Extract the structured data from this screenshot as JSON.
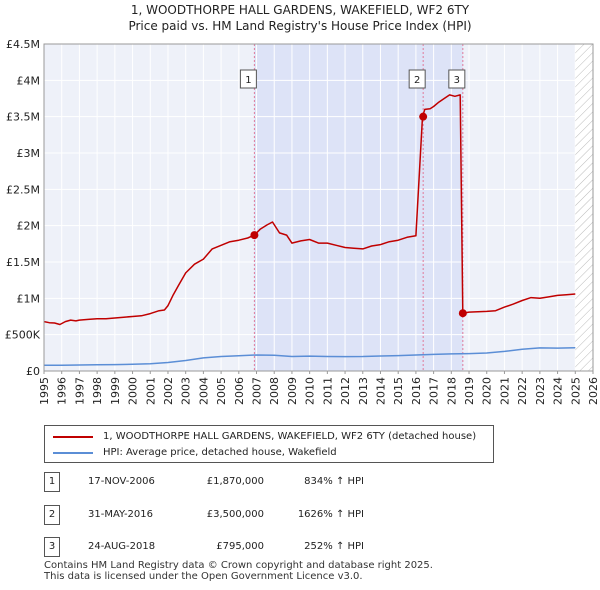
{
  "chart_data": {
    "type": "line",
    "title": "1, WOODTHORPE HALL GARDENS, WAKEFIELD, WF2 6TY",
    "subtitle": "Price paid vs. HM Land Registry's House Price Index (HPI)",
    "xlim": [
      1995,
      2026
    ],
    "ylim": [
      0,
      4500000
    ],
    "x_ticks": [
      1995,
      1996,
      1997,
      1998,
      1999,
      2000,
      2001,
      2002,
      2003,
      2004,
      2005,
      2006,
      2007,
      2008,
      2009,
      2010,
      2011,
      2012,
      2013,
      2014,
      2015,
      2016,
      2017,
      2018,
      2019,
      2020,
      2021,
      2022,
      2023,
      2024,
      2025,
      2026
    ],
    "y_ticks": [
      {
        "value": 0,
        "label": "£0"
      },
      {
        "value": 500000,
        "label": "£500K"
      },
      {
        "value": 1000000,
        "label": "£1M"
      },
      {
        "value": 1500000,
        "label": "£1.5M"
      },
      {
        "value": 2000000,
        "label": "£2M"
      },
      {
        "value": 2500000,
        "label": "£2.5M"
      },
      {
        "value": 3000000,
        "label": "£3M"
      },
      {
        "value": 3500000,
        "label": "£3.5M"
      },
      {
        "value": 4000000,
        "label": "£4M"
      },
      {
        "value": 4500000,
        "label": "£4.5M"
      }
    ],
    "shaded_periods": [
      [
        2006.88,
        2018.65
      ]
    ],
    "future_hatch_from": 2025.0,
    "series": [
      {
        "name": "1, WOODTHORPE HALL GARDENS, WAKEFIELD, WF2 6TY (detached house)",
        "color": "#c00000",
        "x": [
          1995.0,
          1995.3,
          1995.6,
          1995.9,
          1996.2,
          1996.5,
          1996.8,
          1997.0,
          1997.5,
          1998.0,
          1998.5,
          1999.0,
          1999.5,
          2000.0,
          2000.5,
          2001.0,
          2001.5,
          2001.8,
          2002.0,
          2002.3,
          2002.6,
          2003.0,
          2003.5,
          2004.0,
          2004.5,
          2005.0,
          2005.5,
          2006.0,
          2006.5,
          2006.88,
          2007.2,
          2007.6,
          2007.9,
          2008.3,
          2008.7,
          2009.0,
          2009.5,
          2010.0,
          2010.5,
          2011.0,
          2011.5,
          2012.0,
          2012.5,
          2013.0,
          2013.5,
          2014.0,
          2014.5,
          2015.0,
          2015.5,
          2016.0,
          2016.37,
          2016.5,
          2016.8,
          2017.0,
          2017.3,
          2017.6,
          2017.9,
          2018.2,
          2018.5,
          2018.65,
          2019.0,
          2019.5,
          2020.0,
          2020.5,
          2021.0,
          2021.5,
          2022.0,
          2022.5,
          2023.0,
          2023.5,
          2024.0,
          2024.5,
          2025.0
        ],
        "y": [
          680000,
          665000,
          660000,
          640000,
          680000,
          700000,
          690000,
          700000,
          710000,
          720000,
          720000,
          730000,
          740000,
          750000,
          760000,
          790000,
          830000,
          840000,
          900000,
          1050000,
          1180000,
          1350000,
          1470000,
          1540000,
          1680000,
          1730000,
          1780000,
          1800000,
          1830000,
          1870000,
          1950000,
          2010000,
          2050000,
          1900000,
          1870000,
          1760000,
          1790000,
          1810000,
          1760000,
          1760000,
          1730000,
          1700000,
          1690000,
          1680000,
          1720000,
          1740000,
          1780000,
          1800000,
          1840000,
          1860000,
          3500000,
          3600000,
          3610000,
          3640000,
          3700000,
          3750000,
          3800000,
          3780000,
          3800000,
          795000,
          810000,
          815000,
          820000,
          830000,
          880000,
          920000,
          970000,
          1010000,
          1000000,
          1020000,
          1040000,
          1050000,
          1060000
        ],
        "points": [
          {
            "x": 2006.88,
            "y": 1870000
          },
          {
            "x": 2016.41,
            "y": 3500000
          },
          {
            "x": 2018.65,
            "y": 795000
          }
        ]
      },
      {
        "name": "HPI: Average price, detached house, Wakefield",
        "color": "#5b8ed6",
        "x": [
          1995,
          1996,
          1997,
          1998,
          1999,
          2000,
          2001,
          2002,
          2003,
          2004,
          2005,
          2006,
          2007,
          2008,
          2009,
          2010,
          2011,
          2012,
          2013,
          2014,
          2015,
          2016,
          2017,
          2018,
          2019,
          2020,
          2021,
          2022,
          2023,
          2024,
          2025
        ],
        "y": [
          79000,
          80000,
          82000,
          85000,
          88000,
          92000,
          100000,
          117000,
          145000,
          180000,
          200000,
          210000,
          220000,
          218000,
          200000,
          205000,
          200000,
          198000,
          200000,
          206000,
          212000,
          220000,
          228000,
          236000,
          240000,
          248000,
          270000,
          300000,
          318000,
          315000,
          320000
        ]
      }
    ],
    "markers": [
      {
        "label": "1",
        "x": 2006.88
      },
      {
        "label": "2",
        "x": 2016.41
      },
      {
        "label": "3",
        "x": 2018.65
      }
    ]
  },
  "legend": {
    "items": [
      {
        "label": "1, WOODTHORPE HALL GARDENS, WAKEFIELD, WF2 6TY (detached house)",
        "color": "#c00000"
      },
      {
        "label": "HPI: Average price, detached house, Wakefield",
        "color": "#5b8ed6"
      }
    ]
  },
  "transactions": [
    {
      "num": "1",
      "date": "17-NOV-2006",
      "price": "£1,870,000",
      "hpi": "834% ↑ HPI"
    },
    {
      "num": "2",
      "date": "31-MAY-2016",
      "price": "£3,500,000",
      "hpi": "1626% ↑ HPI"
    },
    {
      "num": "3",
      "date": "24-AUG-2018",
      "price": "£795,000",
      "hpi": "252% ↑ HPI"
    }
  ],
  "footer": {
    "line1": "Contains HM Land Registry data © Crown copyright and database right 2025.",
    "line2": "This data is licensed under the Open Government Licence v3.0."
  }
}
